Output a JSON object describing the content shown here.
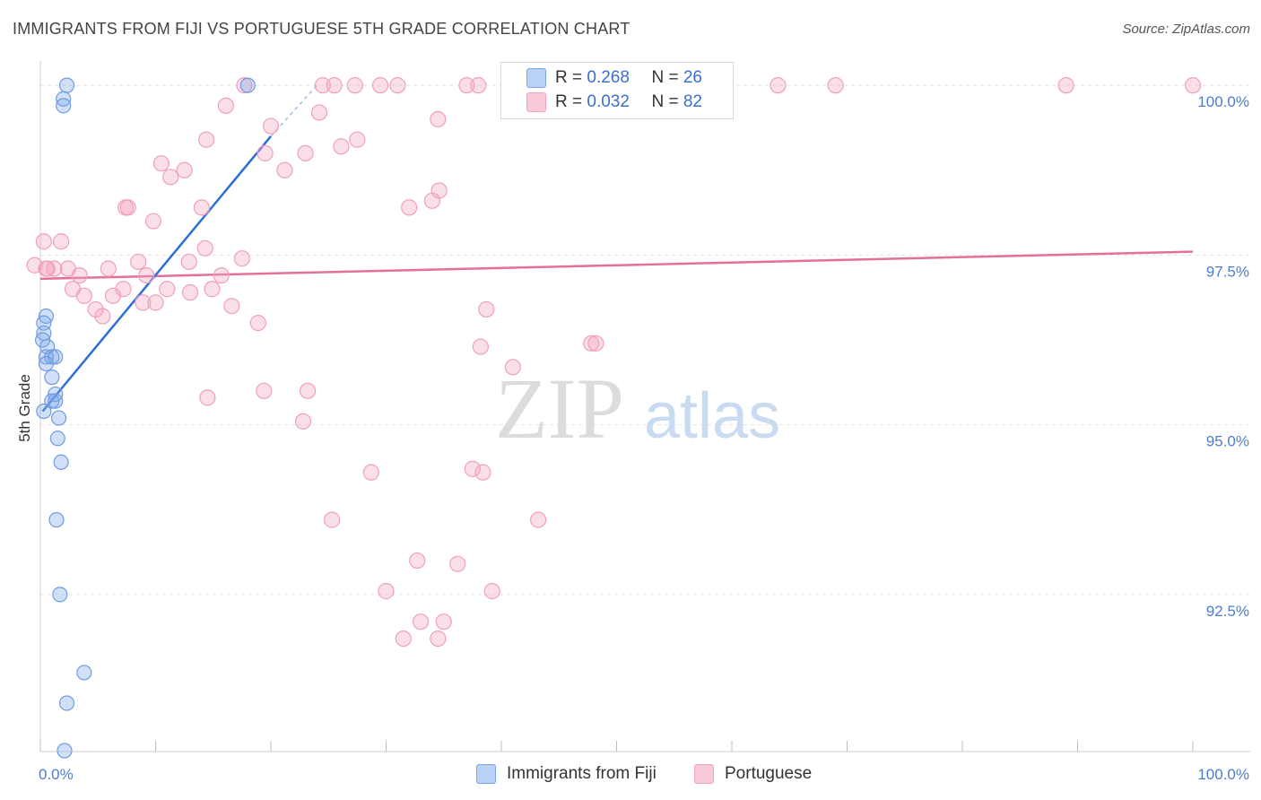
{
  "title": "IMMIGRANTS FROM FIJI VS PORTUGUESE 5TH GRADE CORRELATION CHART",
  "source": "Source: ZipAtlas.com",
  "watermark": {
    "zip": "ZIP",
    "atlas": "atlas"
  },
  "legend": {
    "fiji": {
      "r_label": "R = ",
      "r_value": "0.268",
      "n_label": "N = ",
      "n_value": "26"
    },
    "portuguese": {
      "r_label": "R = ",
      "r_value": "0.032",
      "n_label": "N = ",
      "n_value": "82"
    }
  },
  "bottom_legend": {
    "fiji": "Immigrants from Fiji",
    "portuguese": "Portuguese"
  },
  "chart_data": {
    "type": "scatter",
    "title": "IMMIGRANTS FROM FIJI VS PORTUGUESE 5TH GRADE CORRELATION CHART",
    "xlabel": "",
    "ylabel": "5th Grade",
    "xlim": [
      0,
      100
    ],
    "ylim": [
      90.2,
      100.2
    ],
    "x_tick_labels": [
      "0.0%",
      "100.0%"
    ],
    "y_ticks": [
      {
        "value": 100.0,
        "label": "100.0%"
      },
      {
        "value": 97.5,
        "label": "97.5%"
      },
      {
        "value": 95.0,
        "label": "95.0%"
      },
      {
        "value": 92.5,
        "label": "92.5%"
      }
    ],
    "colors": {
      "fiji": "#7aa6e8",
      "fiji_line": "#2b6ed6",
      "portuguese": "#f2a4bd",
      "portuguese_line": "#e4709a"
    },
    "series": [
      {
        "name": "Immigrants from Fiji",
        "points": [
          [
            2.3,
            100.0
          ],
          [
            2.0,
            99.8
          ],
          [
            2.0,
            99.7
          ],
          [
            18.0,
            100.0
          ],
          [
            0.5,
            96.6
          ],
          [
            0.3,
            96.5
          ],
          [
            0.3,
            96.35
          ],
          [
            0.2,
            96.25
          ],
          [
            0.6,
            96.15
          ],
          [
            0.5,
            96.0
          ],
          [
            1.0,
            96.0
          ],
          [
            1.3,
            96.0
          ],
          [
            0.5,
            95.9
          ],
          [
            1.0,
            95.7
          ],
          [
            1.3,
            95.45
          ],
          [
            1.3,
            95.35
          ],
          [
            1.0,
            95.35
          ],
          [
            0.3,
            95.2
          ],
          [
            1.6,
            95.1
          ],
          [
            1.5,
            94.8
          ],
          [
            1.8,
            94.45
          ],
          [
            1.4,
            93.6
          ],
          [
            1.7,
            92.5
          ],
          [
            3.8,
            91.35
          ],
          [
            2.3,
            90.9
          ],
          [
            2.1,
            90.2
          ]
        ],
        "trend": {
          "x0": 0.2,
          "y0": 95.2,
          "x1": 20.0,
          "y1": 99.25,
          "dash_x1": 24.0,
          "dash_y1": 100.0
        }
      },
      {
        "name": "Portuguese",
        "points": [
          [
            0.5,
            97.3
          ],
          [
            0.3,
            97.7
          ],
          [
            1.8,
            97.7
          ],
          [
            1.2,
            97.3
          ],
          [
            2.4,
            97.3
          ],
          [
            3.4,
            97.2
          ],
          [
            2.8,
            97.0
          ],
          [
            3.8,
            96.9
          ],
          [
            4.8,
            96.7
          ],
          [
            5.4,
            96.6
          ],
          [
            6.3,
            96.9
          ],
          [
            7.2,
            97.0
          ],
          [
            5.9,
            97.3
          ],
          [
            8.5,
            97.4
          ],
          [
            9.2,
            97.2
          ],
          [
            8.9,
            96.8
          ],
          [
            10.0,
            96.8
          ],
          [
            11.0,
            97.0
          ],
          [
            13.0,
            96.95
          ],
          [
            12.9,
            97.4
          ],
          [
            14.9,
            97.0
          ],
          [
            14.3,
            97.6
          ],
          [
            15.7,
            97.2
          ],
          [
            17.5,
            97.45
          ],
          [
            16.6,
            96.75
          ],
          [
            18.9,
            96.5
          ],
          [
            7.4,
            98.2
          ],
          [
            10.5,
            98.85
          ],
          [
            11.3,
            98.65
          ],
          [
            12.5,
            98.75
          ],
          [
            14.0,
            98.2
          ],
          [
            9.8,
            98.0
          ],
          [
            7.6,
            98.2
          ],
          [
            14.4,
            99.2
          ],
          [
            16.1,
            99.7
          ],
          [
            17.7,
            100.0
          ],
          [
            19.5,
            99.0
          ],
          [
            20.0,
            99.4
          ],
          [
            21.2,
            98.75
          ],
          [
            23.0,
            99.0
          ],
          [
            24.2,
            99.6
          ],
          [
            24.5,
            100.0
          ],
          [
            25.5,
            100.0
          ],
          [
            27.3,
            100.0
          ],
          [
            26.1,
            99.1
          ],
          [
            27.5,
            99.2
          ],
          [
            29.5,
            100.0
          ],
          [
            31.0,
            100.0
          ],
          [
            37.0,
            100.0
          ],
          [
            34.6,
            98.45
          ],
          [
            32.0,
            98.2
          ],
          [
            34.0,
            98.3
          ],
          [
            34.5,
            99.5
          ],
          [
            38.0,
            100.0
          ],
          [
            64.0,
            100.0
          ],
          [
            69.0,
            100.0
          ],
          [
            89.0,
            100.0
          ],
          [
            100.0,
            100.0
          ],
          [
            14.5,
            95.4
          ],
          [
            19.4,
            95.5
          ],
          [
            22.8,
            95.05
          ],
          [
            23.2,
            95.5
          ],
          [
            28.7,
            94.3
          ],
          [
            25.3,
            93.6
          ],
          [
            38.7,
            96.7
          ],
          [
            38.2,
            96.15
          ],
          [
            41.0,
            95.85
          ],
          [
            48.2,
            96.2
          ],
          [
            47.8,
            96.2
          ],
          [
            37.5,
            94.35
          ],
          [
            38.4,
            94.3
          ],
          [
            43.2,
            93.6
          ],
          [
            32.7,
            93.0
          ],
          [
            36.2,
            92.95
          ],
          [
            30.0,
            92.55
          ],
          [
            39.2,
            92.55
          ],
          [
            33.0,
            92.1
          ],
          [
            35.0,
            92.1
          ],
          [
            31.5,
            91.85
          ],
          [
            34.5,
            91.85
          ],
          [
            -0.5,
            97.35
          ],
          [
            0.6,
            97.3
          ]
        ],
        "trend": {
          "x0": 0,
          "y0": 97.15,
          "x1": 100,
          "y1": 97.55
        }
      }
    ]
  }
}
